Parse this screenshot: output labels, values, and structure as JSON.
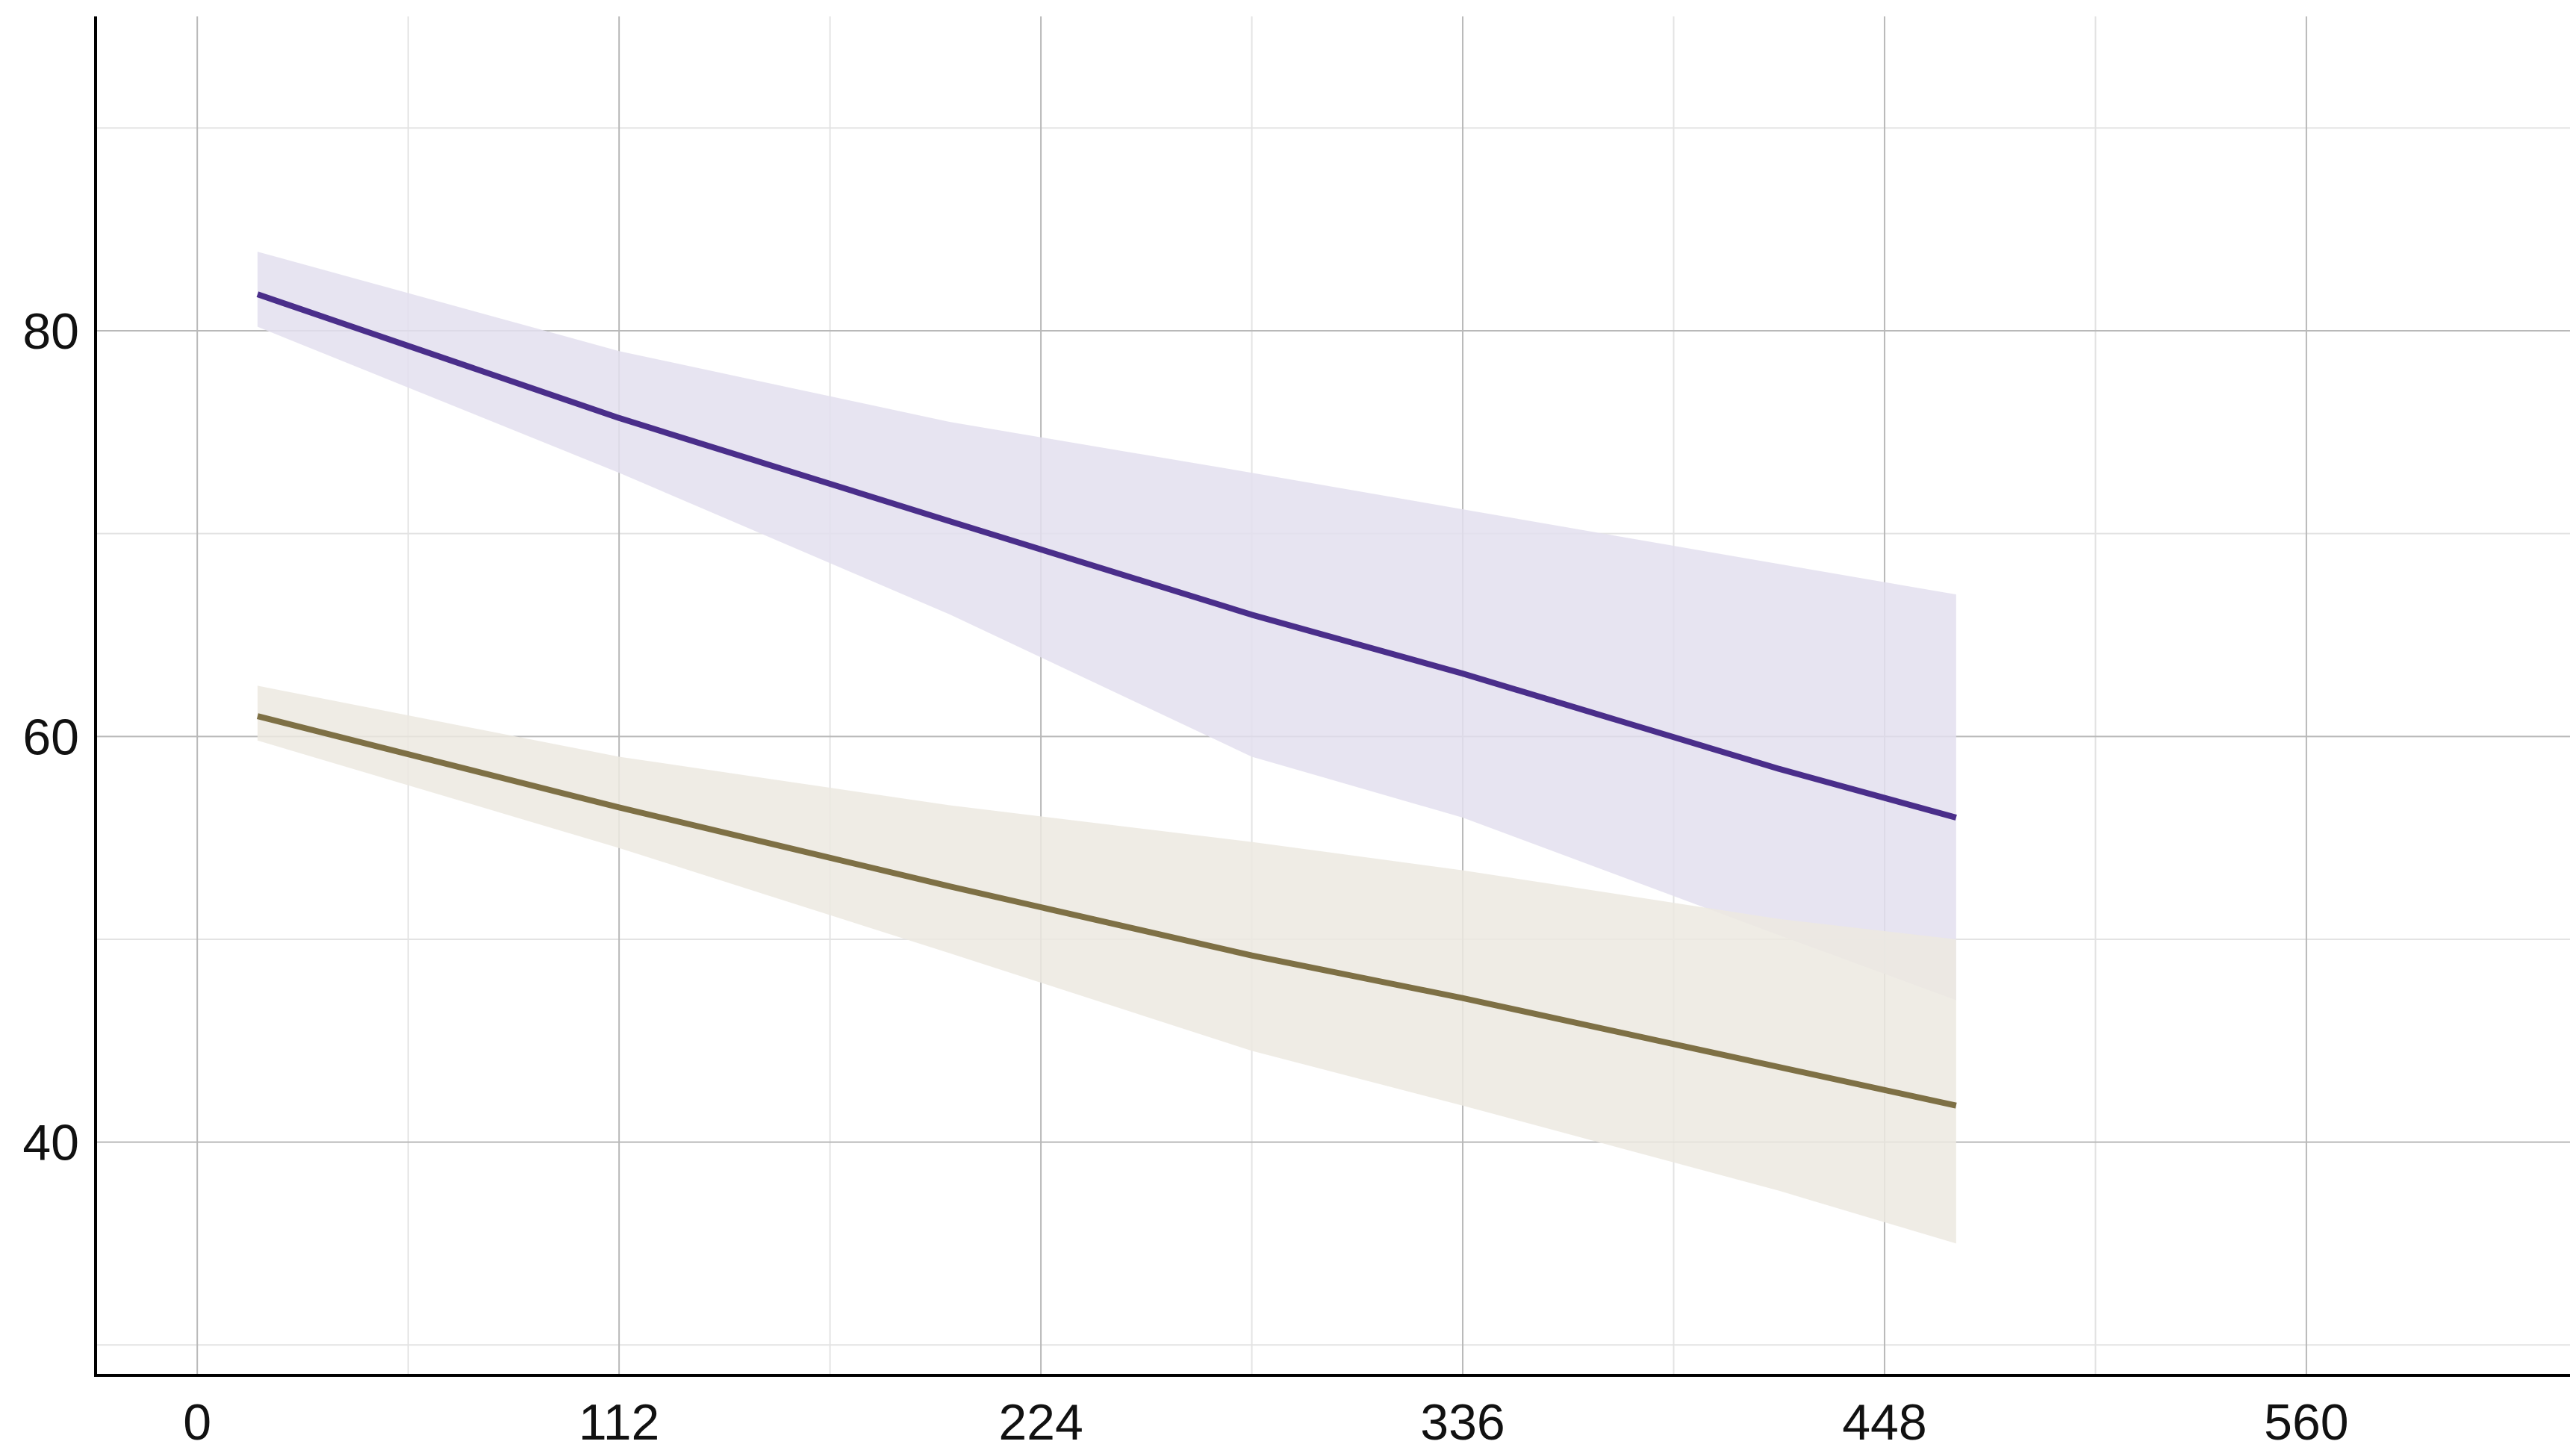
{
  "chart_data": {
    "type": "line",
    "title": "",
    "xlabel": "",
    "ylabel": "",
    "xlim": [
      -27,
      630
    ],
    "ylim": [
      28.5,
      95.5
    ],
    "x_ticks": [
      "0",
      "112",
      "224",
      "336",
      "448",
      "560"
    ],
    "x_tick_values": [
      0,
      112,
      224,
      336,
      448,
      560
    ],
    "x_minor_grid": [
      56,
      168,
      280,
      392,
      504
    ],
    "y_ticks": [
      "40",
      "60",
      "80"
    ],
    "y_tick_values": [
      40,
      60,
      80
    ],
    "y_minor_grid": [
      30,
      50,
      70,
      90
    ],
    "grid": true,
    "legend": "none",
    "colors": {
      "axis": "#000000",
      "grid_major": "#b9b9b9",
      "grid_minor": "#e3e3e3"
    },
    "series": [
      {
        "color": "#4a2e8a",
        "band_color": "#e3dfee",
        "x": [
          16,
          112,
          200,
          280,
          336,
          420,
          467
        ],
        "y": [
          81.8,
          75.7,
          70.6,
          66.0,
          63.1,
          58.4,
          56.0
        ],
        "band_x": [
          16,
          112,
          200,
          280,
          336,
          420,
          467
        ],
        "band_upper": [
          83.9,
          79.0,
          75.5,
          73.0,
          71.2,
          68.5,
          67.0
        ],
        "band_lower": [
          80.2,
          73.0,
          66.0,
          59.0,
          56.0,
          50.2,
          47.0
        ]
      },
      {
        "color": "#7e7045",
        "band_color": "#ece9e1",
        "x": [
          16,
          112,
          200,
          280,
          336,
          420,
          467
        ],
        "y": [
          61.0,
          56.5,
          52.6,
          49.2,
          47.1,
          43.7,
          41.8
        ],
        "band_x": [
          16,
          112,
          200,
          280,
          336,
          420,
          467
        ],
        "band_upper": [
          62.5,
          59.0,
          56.6,
          54.8,
          53.4,
          51.0,
          50.0
        ],
        "band_lower": [
          59.8,
          54.5,
          49.3,
          44.5,
          41.8,
          37.6,
          35.0
        ]
      }
    ]
  }
}
